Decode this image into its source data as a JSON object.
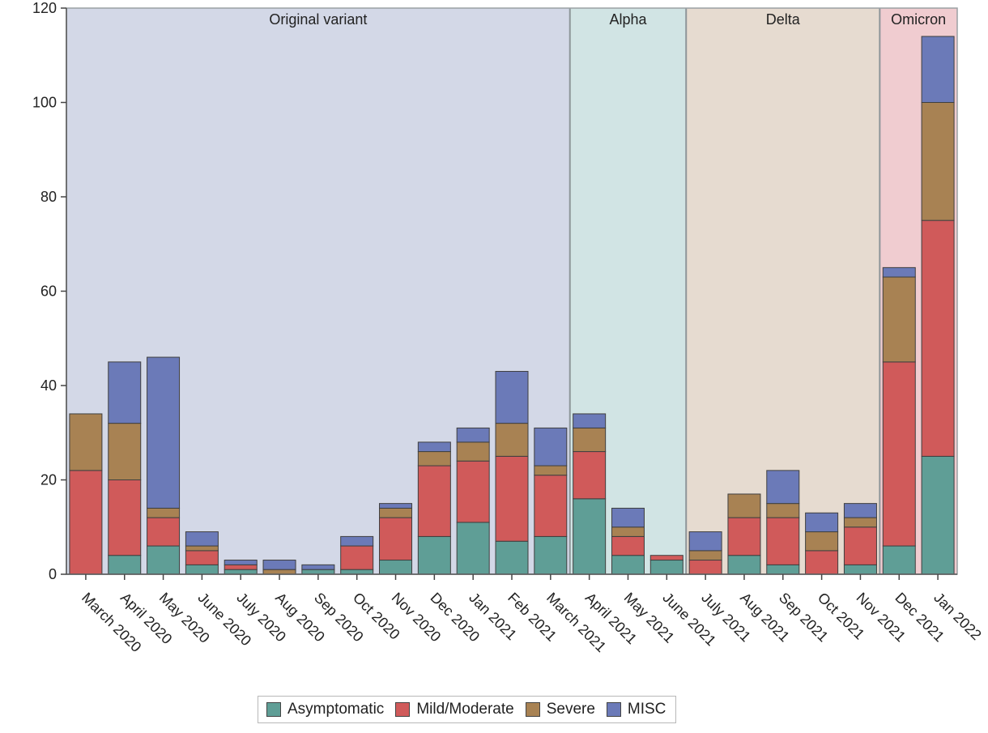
{
  "chart_data": {
    "type": "bar",
    "stacked": true,
    "title": "",
    "xlabel": "",
    "ylabel": "",
    "ylim": [
      0,
      120
    ],
    "yticks": [
      0,
      20,
      40,
      60,
      80,
      100,
      120
    ],
    "grid": false,
    "legend_position": "bottom-center",
    "categories": [
      "March 2020",
      "April 2020",
      "May 2020",
      "June 2020",
      "July 2020",
      "Aug 2020",
      "Sep 2020",
      "Oct 2020",
      "Nov 2020",
      "Dec 2020",
      "Jan 2021",
      "Feb 2021",
      "March 2021",
      "April 2021",
      "May 2021",
      "June 2021",
      "July 2021",
      "Aug 2021",
      "Sep 2021",
      "Oct 2021",
      "Nov 2021",
      "Dec 2021",
      "Jan 2022"
    ],
    "series": [
      {
        "name": "Asymptomatic",
        "color": "#5f9e96",
        "values": [
          0,
          4,
          6,
          2,
          1,
          0,
          1,
          1,
          3,
          8,
          11,
          7,
          8,
          16,
          4,
          3,
          0,
          4,
          2,
          0,
          2,
          6,
          25
        ]
      },
      {
        "name": "Mild/Moderate",
        "color": "#d05a5a",
        "values": [
          22,
          16,
          6,
          3,
          1,
          0,
          0,
          5,
          9,
          15,
          13,
          18,
          13,
          10,
          4,
          1,
          3,
          8,
          10,
          5,
          8,
          39,
          50
        ]
      },
      {
        "name": "Severe",
        "color": "#a88253",
        "values": [
          12,
          12,
          2,
          1,
          0,
          1,
          0,
          0,
          2,
          3,
          4,
          7,
          2,
          5,
          2,
          0,
          2,
          5,
          3,
          4,
          2,
          18,
          25
        ]
      },
      {
        "name": "MISC",
        "color": "#6b7ab8",
        "values": [
          0,
          13,
          32,
          3,
          1,
          2,
          1,
          2,
          1,
          2,
          3,
          11,
          8,
          3,
          4,
          0,
          4,
          0,
          7,
          4,
          3,
          2,
          14
        ]
      }
    ],
    "periods": [
      {
        "label": "Original variant",
        "start": 0,
        "end": 12,
        "color": "#d3d8e7"
      },
      {
        "label": "Alpha",
        "start": 13,
        "end": 15,
        "color": "#d1e4e4"
      },
      {
        "label": "Delta",
        "start": 16,
        "end": 20,
        "color": "#e6dbd0"
      },
      {
        "label": "Omicron",
        "start": 21,
        "end": 22,
        "color": "#f0ccd0"
      }
    ]
  }
}
